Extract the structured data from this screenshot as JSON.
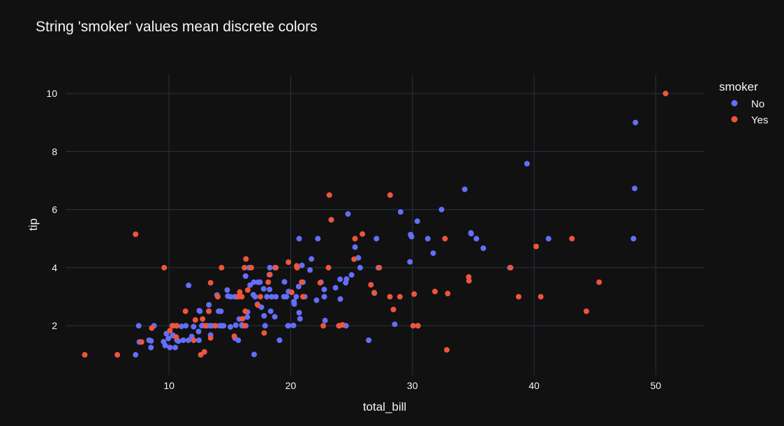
{
  "chart_data": {
    "type": "scatter",
    "title": "String 'smoker' values mean discrete colors",
    "xlabel": "total_bill",
    "ylabel": "tip",
    "xlim": [
      1.5,
      54
    ],
    "ylim": [
      0.3,
      10.65
    ],
    "xticks": [
      10,
      20,
      30,
      40,
      50
    ],
    "yticks": [
      2,
      4,
      6,
      8,
      10
    ],
    "grid": true,
    "legend": {
      "title": "smoker",
      "placement": "top-right"
    },
    "series": [
      {
        "name": "No",
        "color": "#636efa",
        "points": [
          [
            7.25,
            1.0
          ],
          [
            7.56,
            1.44
          ],
          [
            7.51,
            2.0
          ],
          [
            8.52,
            1.48
          ],
          [
            8.51,
            1.25
          ],
          [
            8.77,
            2.0
          ],
          [
            8.35,
            1.5
          ],
          [
            9.55,
            1.45
          ],
          [
            9.68,
            1.32
          ],
          [
            9.94,
            1.56
          ],
          [
            9.78,
            1.73
          ],
          [
            10.07,
            1.25
          ],
          [
            10.29,
            1.66
          ],
          [
            10.33,
            1.67
          ],
          [
            10.34,
            2.0
          ],
          [
            10.51,
            1.25
          ],
          [
            10.63,
            2.0
          ],
          [
            10.65,
            1.5
          ],
          [
            10.77,
            1.47
          ],
          [
            11.02,
            1.98
          ],
          [
            11.17,
            1.5
          ],
          [
            11.38,
            2.0
          ],
          [
            11.59,
            1.5
          ],
          [
            11.61,
            3.39
          ],
          [
            11.87,
            1.63
          ],
          [
            12.02,
            1.97
          ],
          [
            12.43,
            1.8
          ],
          [
            12.46,
            1.5
          ],
          [
            12.48,
            2.52
          ],
          [
            12.54,
            2.5
          ],
          [
            12.69,
            2.0
          ],
          [
            12.74,
            2.01
          ],
          [
            12.9,
            1.1
          ],
          [
            13.0,
            2.0
          ],
          [
            13.03,
            2.0
          ],
          [
            13.13,
            2.0
          ],
          [
            13.27,
            2.5
          ],
          [
            13.28,
            2.72
          ],
          [
            13.37,
            2.0
          ],
          [
            13.42,
            1.68
          ],
          [
            13.51,
            2.0
          ],
          [
            13.81,
            2.0
          ],
          [
            13.94,
            3.06
          ],
          [
            14.07,
            2.5
          ],
          [
            14.15,
            2.0
          ],
          [
            14.26,
            2.5
          ],
          [
            14.31,
            2.0
          ],
          [
            14.48,
            2.0
          ],
          [
            14.78,
            3.23
          ],
          [
            14.83,
            3.02
          ],
          [
            15.04,
            1.96
          ],
          [
            15.06,
            3.0
          ],
          [
            15.38,
            3.0
          ],
          [
            15.42,
            1.57
          ],
          [
            15.48,
            2.02
          ],
          [
            15.53,
            3.0
          ],
          [
            15.69,
            1.5
          ],
          [
            15.77,
            2.23
          ],
          [
            15.98,
            2.03
          ],
          [
            16.0,
            2.0
          ],
          [
            16.29,
            3.71
          ],
          [
            16.31,
            2.0
          ],
          [
            16.43,
            2.3
          ],
          [
            16.45,
            2.47
          ],
          [
            16.58,
            4.0
          ],
          [
            16.66,
            3.4
          ],
          [
            16.93,
            3.07
          ],
          [
            16.97,
            3.5
          ],
          [
            16.99,
            1.01
          ],
          [
            17.07,
            3.0
          ],
          [
            17.26,
            2.74
          ],
          [
            17.31,
            3.5
          ],
          [
            17.47,
            3.5
          ],
          [
            17.59,
            2.64
          ],
          [
            17.78,
            3.27
          ],
          [
            17.81,
            2.34
          ],
          [
            17.89,
            2.0
          ],
          [
            18.04,
            3.0
          ],
          [
            18.24,
            3.76
          ],
          [
            18.26,
            3.25
          ],
          [
            18.28,
            4.0
          ],
          [
            18.29,
            3.76
          ],
          [
            18.35,
            2.5
          ],
          [
            18.43,
            3.0
          ],
          [
            18.69,
            2.31
          ],
          [
            18.71,
            4.0
          ],
          [
            18.78,
            3.0
          ],
          [
            19.08,
            1.5
          ],
          [
            19.44,
            3.0
          ],
          [
            19.49,
            3.51
          ],
          [
            19.65,
            3.0
          ],
          [
            19.77,
            2.0
          ],
          [
            19.82,
            3.18
          ],
          [
            19.81,
            2.0
          ],
          [
            20.08,
            3.15
          ],
          [
            20.23,
            2.01
          ],
          [
            20.27,
            2.83
          ],
          [
            20.29,
            2.75
          ],
          [
            20.45,
            3.0
          ],
          [
            20.65,
            3.35
          ],
          [
            20.69,
            2.45
          ],
          [
            20.76,
            2.24
          ],
          [
            20.69,
            5.0
          ],
          [
            20.92,
            4.08
          ],
          [
            21.01,
            3.5
          ],
          [
            21.16,
            3.0
          ],
          [
            21.58,
            3.92
          ],
          [
            21.7,
            4.3
          ],
          [
            22.12,
            2.88
          ],
          [
            22.23,
            5.0
          ],
          [
            22.49,
            3.5
          ],
          [
            22.75,
            3.25
          ],
          [
            22.76,
            3.0
          ],
          [
            22.82,
            2.18
          ],
          [
            23.33,
            5.65
          ],
          [
            23.68,
            3.31
          ],
          [
            24.06,
            3.6
          ],
          [
            24.08,
            2.92
          ],
          [
            24.01,
            2.0
          ],
          [
            24.55,
            2.0
          ],
          [
            24.59,
            3.61
          ],
          [
            24.71,
            5.85
          ],
          [
            25.0,
            3.75
          ],
          [
            25.29,
            4.71
          ],
          [
            25.56,
            4.34
          ],
          [
            25.71,
            4.0
          ],
          [
            24.52,
            3.48
          ],
          [
            26.41,
            1.5
          ],
          [
            26.88,
            3.12
          ],
          [
            27.2,
            4.0
          ],
          [
            27.05,
            5.0
          ],
          [
            28.55,
            2.05
          ],
          [
            29.03,
            5.92
          ],
          [
            29.8,
            4.2
          ],
          [
            29.85,
            5.14
          ],
          [
            29.93,
            5.07
          ],
          [
            30.46,
            2.0
          ],
          [
            30.4,
            5.6
          ],
          [
            31.27,
            5.0
          ],
          [
            31.71,
            4.5
          ],
          [
            32.4,
            6.0
          ],
          [
            34.3,
            6.7
          ],
          [
            34.81,
            5.2
          ],
          [
            34.83,
            5.17
          ],
          [
            35.26,
            5.0
          ],
          [
            35.83,
            4.67
          ],
          [
            38.01,
            4.0
          ],
          [
            39.42,
            7.58
          ],
          [
            41.19,
            5.0
          ],
          [
            48.17,
            5.0
          ],
          [
            48.27,
            6.73
          ],
          [
            48.33,
            9.0
          ]
        ]
      },
      {
        "name": "Yes",
        "color": "#ef553b",
        "points": [
          [
            3.07,
            1.0
          ],
          [
            5.75,
            1.0
          ],
          [
            7.25,
            5.15
          ],
          [
            7.74,
            1.44
          ],
          [
            8.58,
            1.92
          ],
          [
            9.6,
            4.0
          ],
          [
            10.07,
            1.83
          ],
          [
            10.27,
            2.0
          ],
          [
            10.34,
            2.0
          ],
          [
            10.59,
            1.61
          ],
          [
            10.63,
            2.0
          ],
          [
            11.35,
            2.5
          ],
          [
            12.03,
            1.5
          ],
          [
            12.16,
            2.2
          ],
          [
            12.6,
            1.0
          ],
          [
            12.76,
            2.23
          ],
          [
            12.9,
            1.1
          ],
          [
            13.0,
            2.0
          ],
          [
            13.27,
            2.5
          ],
          [
            13.42,
            3.48
          ],
          [
            13.42,
            1.58
          ],
          [
            13.81,
            2.0
          ],
          [
            14.0,
            3.0
          ],
          [
            14.31,
            4.0
          ],
          [
            15.36,
            1.64
          ],
          [
            15.69,
            3.0
          ],
          [
            15.81,
            3.16
          ],
          [
            15.98,
            3.0
          ],
          [
            16.04,
            2.24
          ],
          [
            16.2,
            4.0
          ],
          [
            16.21,
            2.0
          ],
          [
            16.27,
            2.5
          ],
          [
            16.32,
            4.3
          ],
          [
            16.47,
            3.23
          ],
          [
            16.76,
            4.0
          ],
          [
            17.29,
            2.71
          ],
          [
            17.51,
            3.0
          ],
          [
            17.82,
            1.75
          ],
          [
            18.15,
            3.5
          ],
          [
            18.29,
            3.76
          ],
          [
            18.78,
            4.0
          ],
          [
            19.81,
            4.19
          ],
          [
            20.08,
            3.15
          ],
          [
            20.49,
            4.06
          ],
          [
            20.53,
            4.0
          ],
          [
            20.9,
            3.5
          ],
          [
            21.01,
            3.0
          ],
          [
            22.42,
            3.48
          ],
          [
            22.67,
            2.0
          ],
          [
            23.1,
            4.0
          ],
          [
            23.17,
            6.5
          ],
          [
            23.33,
            5.65
          ],
          [
            23.95,
            2.0
          ],
          [
            24.27,
            2.03
          ],
          [
            25.21,
            4.29
          ],
          [
            25.28,
            5.0
          ],
          [
            25.89,
            5.16
          ],
          [
            26.59,
            3.41
          ],
          [
            26.86,
            3.14
          ],
          [
            27.28,
            4.0
          ],
          [
            28.17,
            6.5
          ],
          [
            28.97,
            3.0
          ],
          [
            28.15,
            3.0
          ],
          [
            28.44,
            2.56
          ],
          [
            30.06,
            2.0
          ],
          [
            30.14,
            3.09
          ],
          [
            30.46,
            2.0
          ],
          [
            31.85,
            3.18
          ],
          [
            32.68,
            5.0
          ],
          [
            32.83,
            1.17
          ],
          [
            32.9,
            3.11
          ],
          [
            34.65,
            3.55
          ],
          [
            34.63,
            3.68
          ],
          [
            38.07,
            4.0
          ],
          [
            38.73,
            3.0
          ],
          [
            40.17,
            4.73
          ],
          [
            40.55,
            3.0
          ],
          [
            43.11,
            5.0
          ],
          [
            44.3,
            2.5
          ],
          [
            45.35,
            3.5
          ],
          [
            50.81,
            10.0
          ]
        ]
      }
    ]
  }
}
